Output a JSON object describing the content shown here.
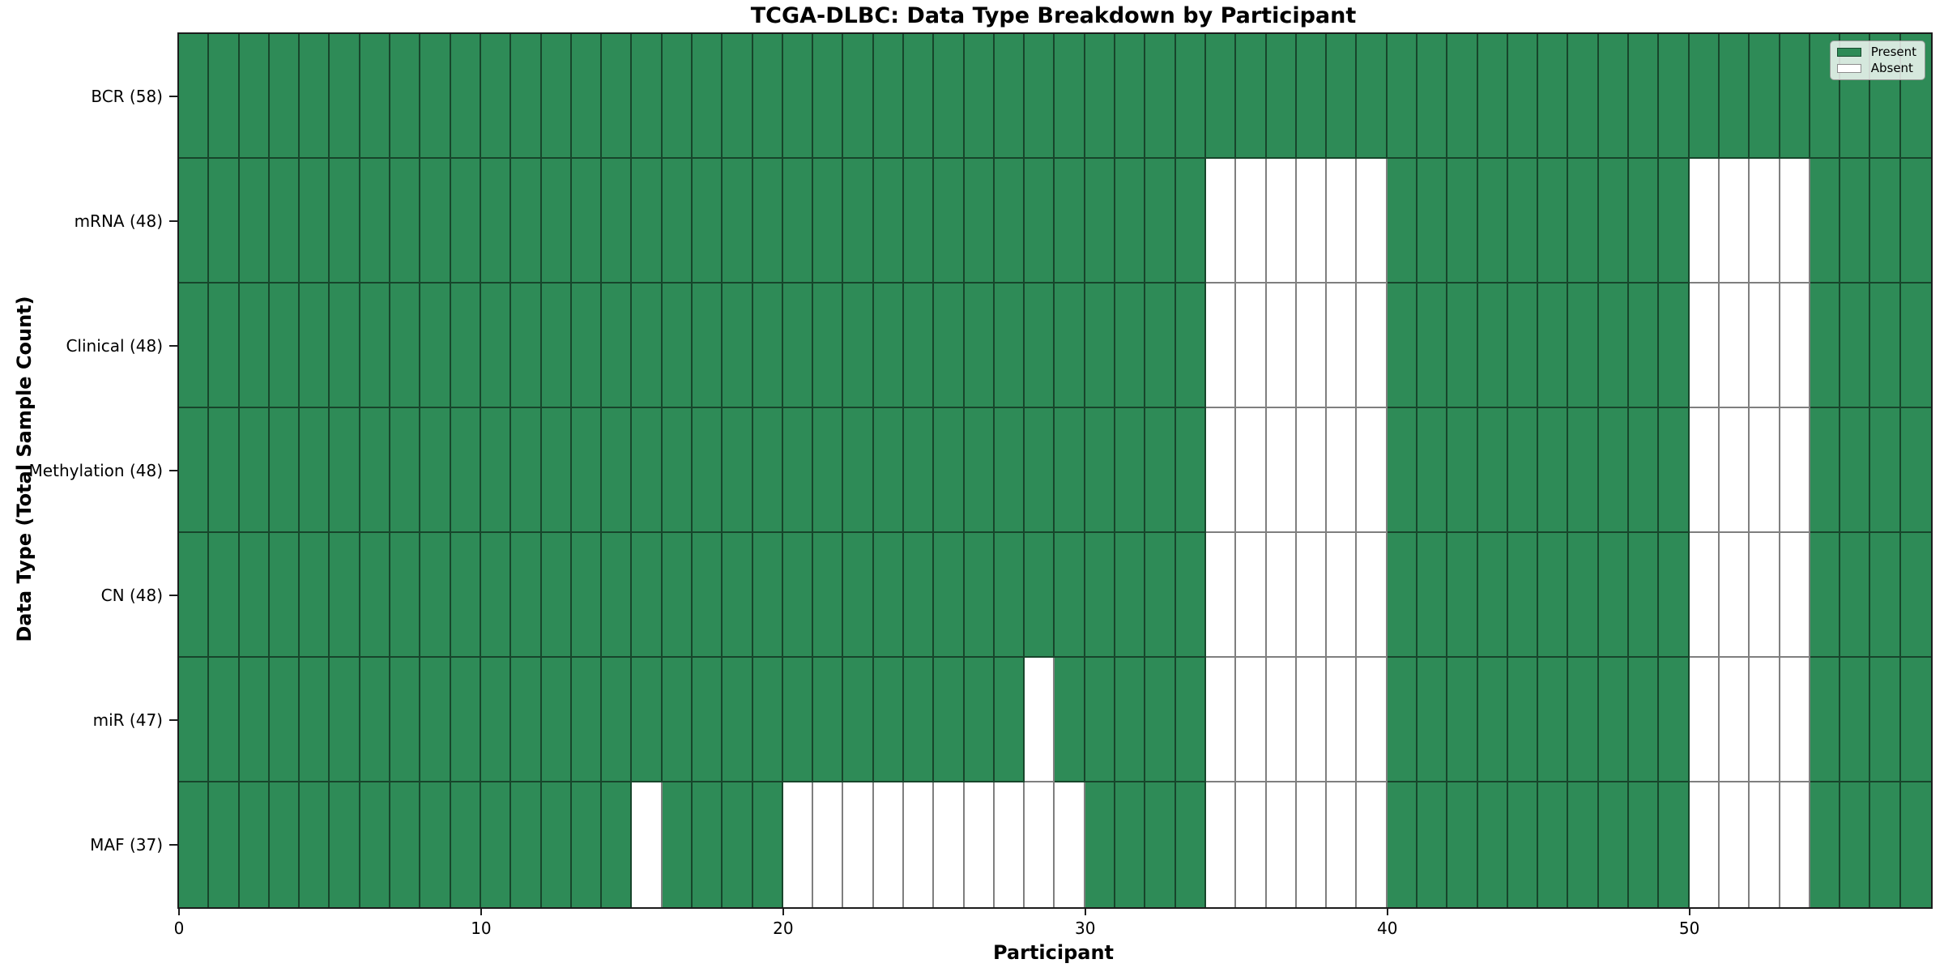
{
  "chart_data": {
    "type": "heatmap",
    "title": "TCGA-DLBC: Data Type Breakdown by Participant",
    "xlabel": "Participant",
    "ylabel": "Data Type (Total Sample Count)",
    "x_ticks": [
      0,
      10,
      20,
      30,
      40,
      50
    ],
    "n_participants": 58,
    "x_range": [
      0,
      58
    ],
    "grid_on": true,
    "legend": {
      "position": "upper-right",
      "items": [
        {
          "label": "Present",
          "color": "#2e8b57"
        },
        {
          "label": "Absent",
          "color": "#ffffff"
        }
      ]
    },
    "rows": [
      {
        "label": "BCR (58)",
        "data_type": "BCR",
        "total_samples": 58,
        "absent_participants": []
      },
      {
        "label": "mRNA (48)",
        "data_type": "mRNA",
        "total_samples": 48,
        "absent_participants": [
          34,
          35,
          36,
          37,
          38,
          39,
          50,
          51,
          52,
          53
        ]
      },
      {
        "label": "Clinical (48)",
        "data_type": "Clinical",
        "total_samples": 48,
        "absent_participants": [
          34,
          35,
          36,
          37,
          38,
          39,
          50,
          51,
          52,
          53
        ]
      },
      {
        "label": "Methylation (48)",
        "data_type": "Methylation",
        "total_samples": 48,
        "absent_participants": [
          34,
          35,
          36,
          37,
          38,
          39,
          50,
          51,
          52,
          53
        ]
      },
      {
        "label": "CN (48)",
        "data_type": "CN",
        "total_samples": 48,
        "absent_participants": [
          34,
          35,
          36,
          37,
          38,
          39,
          50,
          51,
          52,
          53
        ]
      },
      {
        "label": "miR (47)",
        "data_type": "miR",
        "total_samples": 47,
        "absent_participants": [
          28,
          34,
          35,
          36,
          37,
          38,
          39,
          50,
          51,
          52,
          53
        ]
      },
      {
        "label": "MAF (37)",
        "data_type": "MAF",
        "total_samples": 37,
        "absent_participants": [
          15,
          20,
          21,
          22,
          23,
          24,
          25,
          26,
          27,
          28,
          29,
          34,
          35,
          36,
          37,
          38,
          39,
          50,
          51,
          52,
          53
        ]
      }
    ],
    "colors": {
      "present": "#2e8b57",
      "absent": "#ffffff",
      "grid_line": "rgba(0,0,0,0.5)",
      "spine": "#1c1c1c"
    }
  }
}
